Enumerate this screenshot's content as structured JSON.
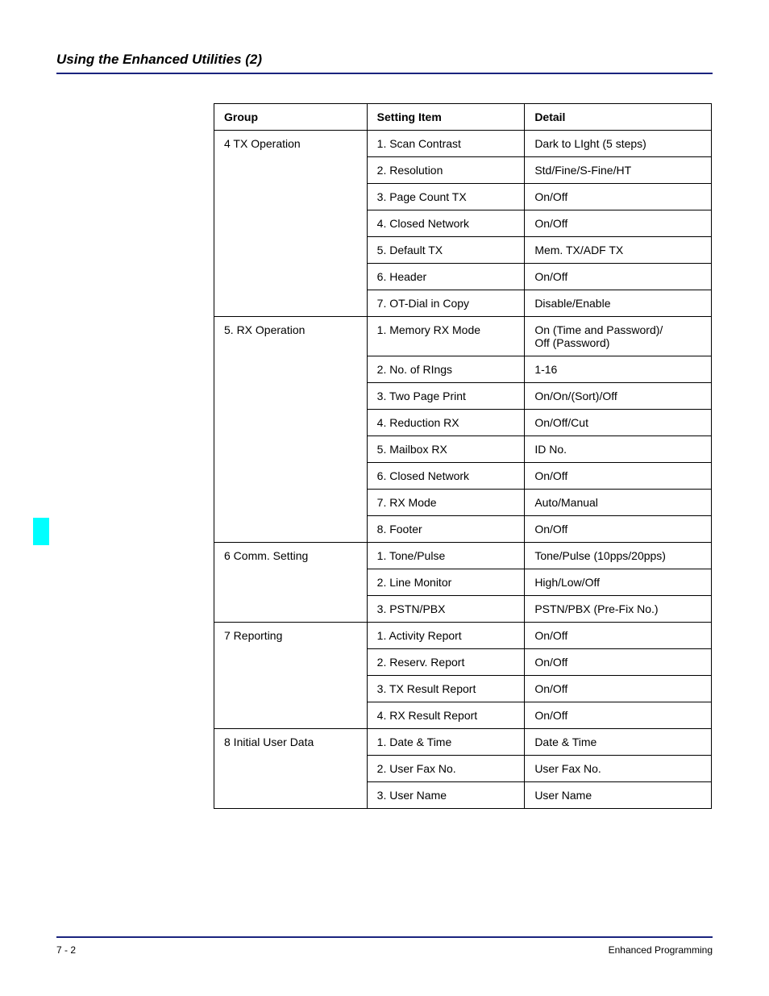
{
  "page": {
    "title": "Using the Enhanced Utilities (2)",
    "footer_left": "7 - 2",
    "footer_right": "Enhanced Programming",
    "accent_color": "#1a237e",
    "tab_color": "#00ffff"
  },
  "table": {
    "headers": {
      "group": "Group",
      "setting_item": "Setting Item",
      "detail": "Detail"
    },
    "groups": [
      {
        "name": "4 TX Operation",
        "rows": [
          {
            "item": "1. Scan Contrast",
            "detail": "Dark to LIght (5 steps)"
          },
          {
            "item": "2. Resolution",
            "detail": "Std/Fine/S-Fine/HT"
          },
          {
            "item": "3. Page Count TX",
            "detail": "On/Off"
          },
          {
            "item": "4. Closed Network",
            "detail": "On/Off"
          },
          {
            "item": "5. Default TX",
            "detail": "Mem. TX/ADF TX"
          },
          {
            "item": "6. Header",
            "detail": "On/Off"
          },
          {
            "item": "7. OT-Dial in Copy",
            "detail": "Disable/Enable"
          }
        ]
      },
      {
        "name": "5. RX Operation",
        "rows": [
          {
            "item": "1. Memory RX Mode",
            "detail": "On (Time and Password)/\nOff (Password)"
          },
          {
            "item": "2. No. of RIngs",
            "detail": "1-16"
          },
          {
            "item": "3. Two Page Print",
            "detail": "On/On/(Sort)/Off"
          },
          {
            "item": "4. Reduction RX",
            "detail": "On/Off/Cut"
          },
          {
            "item": "5. Mailbox RX",
            "detail": "ID No."
          },
          {
            "item": "6. Closed Network",
            "detail": "On/Off"
          },
          {
            "item": "7. RX Mode",
            "detail": "Auto/Manual"
          },
          {
            "item": "8. Footer",
            "detail": "On/Off"
          }
        ]
      },
      {
        "name": "6 Comm. Setting",
        "rows": [
          {
            "item": "1. Tone/Pulse",
            "detail": "Tone/Pulse (10pps/20pps)"
          },
          {
            "item": "2. Line Monitor",
            "detail": "High/Low/Off"
          },
          {
            "item": "3. PSTN/PBX",
            "detail": "PSTN/PBX (Pre-Fix No.)"
          }
        ]
      },
      {
        "name": "7 Reporting",
        "rows": [
          {
            "item": "1. Activity Report",
            "detail": "On/Off"
          },
          {
            "item": "2. Reserv. Report",
            "detail": "On/Off"
          },
          {
            "item": "3. TX Result Report",
            "detail": "On/Off"
          },
          {
            "item": "4. RX Result Report",
            "detail": "On/Off"
          }
        ]
      },
      {
        "name": "8 Initial User Data",
        "rows": [
          {
            "item": "1. Date & Time",
            "detail": "Date & Time"
          },
          {
            "item": "2. User Fax No.",
            "detail": "User Fax No."
          },
          {
            "item": "3. User Name",
            "detail": "User Name"
          }
        ]
      }
    ]
  }
}
